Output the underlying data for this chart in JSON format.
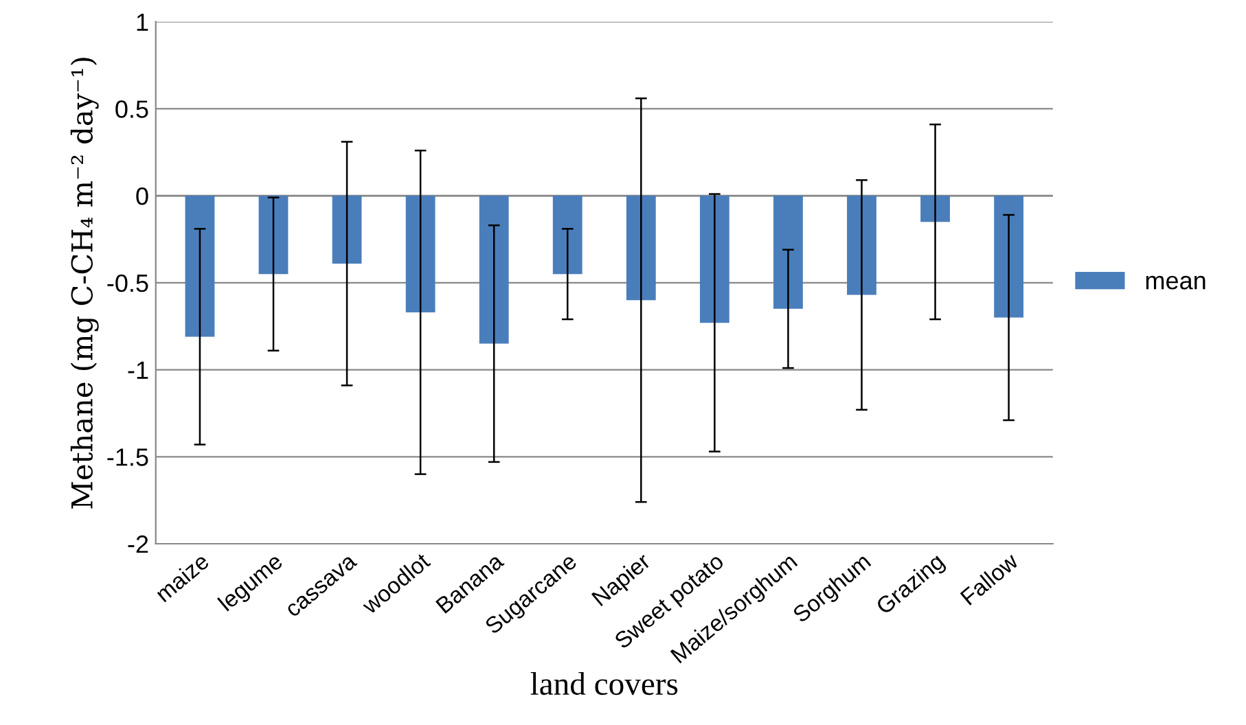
{
  "chart_data": {
    "type": "bar",
    "xlabel": "land covers",
    "ylabel": "Methane (mg C-CH₄ m⁻² day⁻¹)",
    "categories": [
      "maize",
      "legume",
      "cassava",
      "woodlot",
      "Banana",
      "Sugarcane",
      "Napier",
      "Sweet potato",
      "Maize/sorghum",
      "Sorghum",
      "Grazing",
      "Fallow"
    ],
    "series": [
      {
        "name": "mean",
        "color": "#4a7ebb",
        "values": [
          -0.81,
          -0.45,
          -0.39,
          -0.67,
          -0.85,
          -0.45,
          -0.6,
          -0.73,
          -0.65,
          -0.57,
          -0.15,
          -0.7
        ],
        "errors": [
          0.62,
          0.44,
          0.7,
          0.93,
          0.68,
          0.26,
          1.16,
          0.74,
          0.34,
          0.66,
          0.56,
          0.59
        ]
      }
    ],
    "ylim": [
      -2,
      1
    ],
    "yticks": [
      -2,
      -1.5,
      -1,
      -0.5,
      0,
      0.5,
      1
    ],
    "grid": "y",
    "legend": "right"
  }
}
